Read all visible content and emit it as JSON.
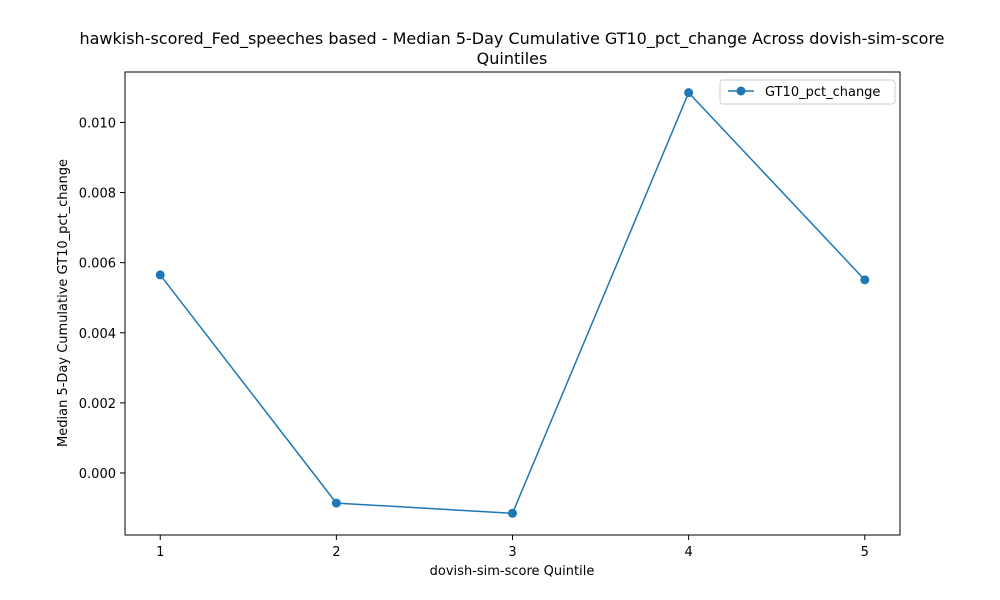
{
  "chart_data": {
    "type": "line",
    "title_line1": "hawkish-scored_Fed_speeches based - Median 5-Day Cumulative GT10_pct_change Across dovish-sim-score",
    "title_line2": "Quintiles",
    "xlabel": "dovish-sim-score Quintile",
    "ylabel": "Median 5-Day Cumulative GT10_pct_change",
    "x": [
      1,
      2,
      3,
      4,
      5
    ],
    "x_tick_labels": [
      "1",
      "2",
      "3",
      "4",
      "5"
    ],
    "y_ticks": [
      0.0,
      0.002,
      0.004,
      0.006,
      0.008,
      0.01
    ],
    "y_tick_labels": [
      "0.000",
      "0.002",
      "0.004",
      "0.006",
      "0.008",
      "0.010"
    ],
    "xlim": [
      0.8,
      5.2
    ],
    "ylim": [
      -0.00177,
      0.01144
    ],
    "grid": false,
    "legend_position": "top-right",
    "series": [
      {
        "name": "GT10_pct_change",
        "color": "#1f77b4",
        "marker": "circle",
        "values": [
          0.00565,
          -0.00086,
          -0.00115,
          0.01085,
          0.00551
        ]
      }
    ]
  }
}
